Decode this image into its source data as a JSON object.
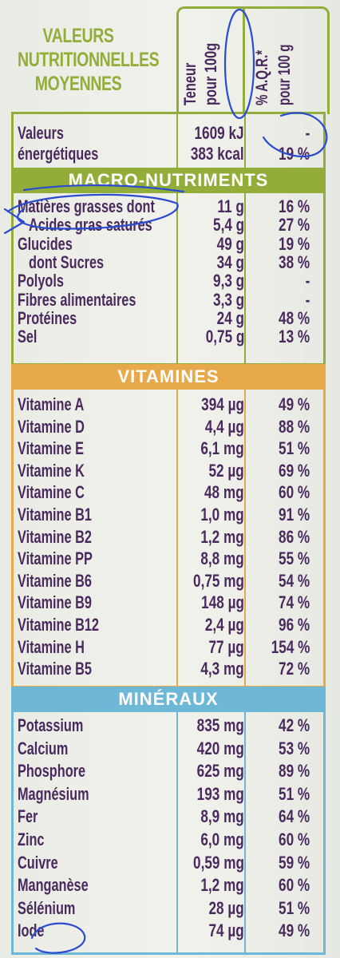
{
  "header": {
    "title_lines": [
      "VALEURS",
      "NUTRITIONNELLES",
      "MOYENNES"
    ],
    "col1_lines": [
      "Teneur",
      "pour 100g"
    ],
    "col2_lines": [
      "% A.Q.R.*",
      "pour 100 g"
    ]
  },
  "energy": {
    "label_lines": [
      "Valeurs",
      "énergétiques"
    ],
    "qty_lines": [
      "1609 kJ",
      "383 kcal"
    ],
    "pct_lines": [
      "-",
      "19 %"
    ]
  },
  "sections": [
    {
      "title": "MACRO-NUTRIMENTS",
      "rows": [
        {
          "name": "Matières grasses dont",
          "qty": "11 g",
          "pct": "16 %",
          "indent": false
        },
        {
          "name": "Acides gras saturés",
          "qty": "5,4 g",
          "pct": "27 %",
          "indent": true
        },
        {
          "name": "Glucides",
          "qty": "49 g",
          "pct": "19 %",
          "indent": false
        },
        {
          "name": "dont Sucres",
          "qty": "34 g",
          "pct": "38 %",
          "indent": true
        },
        {
          "name": "Polyols",
          "qty": "9,3 g",
          "pct": "-",
          "indent": false
        },
        {
          "name": "Fibres alimentaires",
          "qty": "3,3 g",
          "pct": "-",
          "indent": false
        },
        {
          "name": "Protéines",
          "qty": "24 g",
          "pct": "48 %",
          "indent": false
        },
        {
          "name": "Sel",
          "qty": "0,75 g",
          "pct": "13 %",
          "indent": false
        }
      ]
    },
    {
      "title": "VITAMINES",
      "rows": [
        {
          "name": "Vitamine A",
          "qty": "394 µg",
          "pct": "49 %"
        },
        {
          "name": "Vitamine D",
          "qty": "4,4 µg",
          "pct": "88 %"
        },
        {
          "name": "Vitamine E",
          "qty": "6,1 mg",
          "pct": "51 %"
        },
        {
          "name": "Vitamine K",
          "qty": "52 µg",
          "pct": "69 %"
        },
        {
          "name": "Vitamine C",
          "qty": "48 mg",
          "pct": "60 %"
        },
        {
          "name": "Vitamine B1",
          "qty": "1,0 mg",
          "pct": "91 %"
        },
        {
          "name": "Vitamine B2",
          "qty": "1,2 mg",
          "pct": "86 %"
        },
        {
          "name": "Vitamine PP",
          "qty": "8,8 mg",
          "pct": "55 %"
        },
        {
          "name": "Vitamine B6",
          "qty": "0,75 mg",
          "pct": "54 %"
        },
        {
          "name": "Vitamine B9",
          "qty": "148 µg",
          "pct": "74 %"
        },
        {
          "name": "Vitamine B12",
          "qty": "2,4 µg",
          "pct": "96 %"
        },
        {
          "name": "Vitamine H",
          "qty": "77 µg",
          "pct": "154 %"
        },
        {
          "name": "Vitamine B5",
          "qty": "4,3 mg",
          "pct": "72 %"
        }
      ]
    },
    {
      "title": "MINÉRAUX",
      "rows": [
        {
          "name": "Potassium",
          "qty": "835 mg",
          "pct": "42 %"
        },
        {
          "name": "Calcium",
          "qty": "420 mg",
          "pct": "53 %"
        },
        {
          "name": "Phosphore",
          "qty": "625 mg",
          "pct": "89 %"
        },
        {
          "name": "Magnésium",
          "qty": "193 mg",
          "pct": "51 %"
        },
        {
          "name": "Fer",
          "qty": "8,9 mg",
          "pct": "64 %"
        },
        {
          "name": "Zinc",
          "qty": "6,0 mg",
          "pct": "60 %"
        },
        {
          "name": "Cuivre",
          "qty": "0,59 mg",
          "pct": "59 %"
        },
        {
          "name": "Manganèse",
          "qty": "1,2 mg",
          "pct": "60 %"
        },
        {
          "name": "Sélénium",
          "qty": "28 µg",
          "pct": "51 %"
        },
        {
          "name": "Iode",
          "qty": "74 µg",
          "pct": "49 %"
        }
      ]
    }
  ],
  "colors": {
    "text": "#4a2a5e",
    "macro": "#93ad3a",
    "vitamins": "#e8a94a",
    "minerals": "#6eb7d6",
    "pen": "#2b4bd0"
  }
}
